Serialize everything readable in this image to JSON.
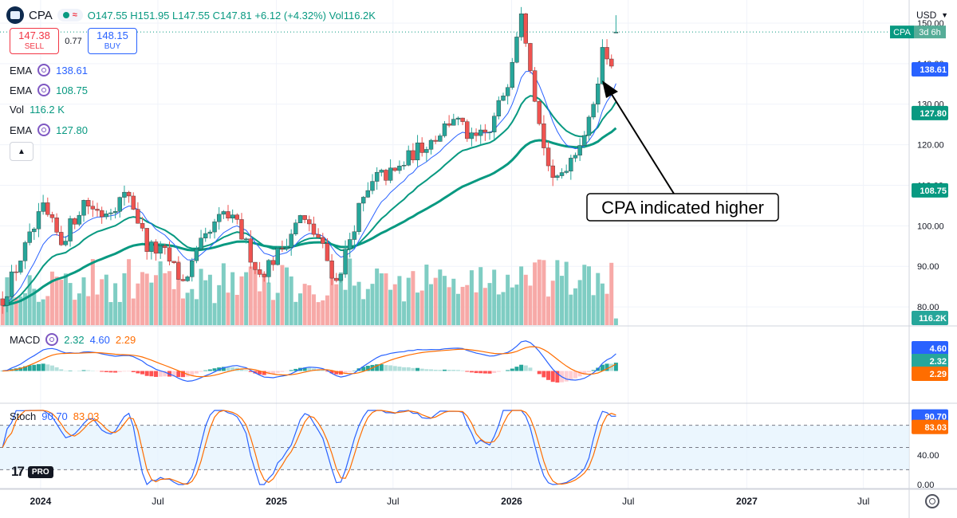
{
  "header": {
    "symbol": "CPA",
    "ohlc": "O147.55 H151.95 L147.55 C147.81 +6.12 (+4.32%) Vol116.2K",
    "currency": "USD"
  },
  "trade": {
    "sell_price": "147.38",
    "sell_label": "SELL",
    "spread": "0.77",
    "buy_price": "148.15",
    "buy_label": "BUY"
  },
  "indicators": {
    "ema1": {
      "name": "EMA",
      "value": "138.61"
    },
    "ema2": {
      "name": "EMA",
      "value": "108.75"
    },
    "vol": {
      "name": "Vol",
      "value": "116.2 K"
    },
    "ema3": {
      "name": "EMA",
      "value": "127.80"
    },
    "macd": {
      "name": "MACD",
      "v1": "2.32",
      "v2": "4.60",
      "v3": "2.29"
    },
    "stoch": {
      "name": "Stoch",
      "k": "90.70",
      "d": "83.03"
    }
  },
  "branding": {
    "pro": "PRO"
  },
  "colors": {
    "up": "#26a69a",
    "down": "#ef5350",
    "ema_short": "#2962ff",
    "ema_mid": "#089981",
    "ema_long": "#089981",
    "macd": "#2962ff",
    "signal": "#ff6d00",
    "stoch_k": "#2962ff",
    "stoch_d": "#ff6d00"
  },
  "chart_data": {
    "type": "candlestick",
    "price_ticks": [
      80,
      90,
      100,
      110,
      120,
      130,
      140,
      150
    ],
    "price_range": [
      75.5,
      155.7
    ],
    "x_labels": [
      "2024",
      "Jul",
      "2025",
      "Jul",
      "2026",
      "Jul",
      "2027",
      "Jul"
    ],
    "x_range": [
      "2023-10-30",
      "2027-09-10"
    ],
    "last_candle": {
      "date": "2026-06-12",
      "open": 147.55,
      "high": 151.95,
      "low": 147.55,
      "close": 147.81,
      "volume": "116.2K"
    },
    "price_path": [
      [
        "2023-11-03",
        82
      ],
      [
        "2023-12-01",
        92
      ],
      [
        "2024-01-05",
        104
      ],
      [
        "2024-02-02",
        96
      ],
      [
        "2024-03-08",
        106
      ],
      [
        "2024-04-05",
        103
      ],
      [
        "2024-05-17",
        108
      ],
      [
        "2024-06-14",
        95
      ],
      [
        "2024-07-12",
        93
      ],
      [
        "2024-08-09",
        86
      ],
      [
        "2024-09-06",
        95
      ],
      [
        "2024-10-11",
        103
      ],
      [
        "2024-11-01",
        100
      ],
      [
        "2024-12-06",
        88
      ],
      [
        "2025-01-03",
        93
      ],
      [
        "2025-02-07",
        102
      ],
      [
        "2025-03-07",
        97
      ],
      [
        "2025-04-04",
        86
      ],
      [
        "2025-05-09",
        104
      ],
      [
        "2025-06-06",
        112
      ],
      [
        "2025-07-04",
        113
      ],
      [
        "2025-08-01",
        118
      ],
      [
        "2025-09-05",
        122
      ],
      [
        "2025-10-03",
        127
      ],
      [
        "2025-10-31",
        121
      ],
      [
        "2025-11-28",
        123
      ],
      [
        "2025-12-26",
        136
      ],
      [
        "2026-01-16",
        154
      ],
      [
        "2026-01-30",
        140
      ],
      [
        "2026-02-13",
        125
      ],
      [
        "2026-03-06",
        110
      ],
      [
        "2026-04-03",
        117
      ],
      [
        "2026-05-01",
        125
      ],
      [
        "2026-05-22",
        143
      ],
      [
        "2026-06-05",
        141
      ],
      [
        "2026-06-12",
        147.81
      ]
    ],
    "volume_scale": 200,
    "ema_labels": {
      "short": 138.61,
      "mid": 127.8,
      "long": 108.75
    },
    "macd_labels": {
      "macd": 4.6,
      "histogram": 2.32,
      "signal": 2.29
    },
    "stoch_ticks": [
      0,
      40
    ],
    "stoch_labels": {
      "k": 90.7,
      "d": 83.03
    },
    "annotation": "CPA indicated higher",
    "countdown_label": "3d 6h"
  }
}
